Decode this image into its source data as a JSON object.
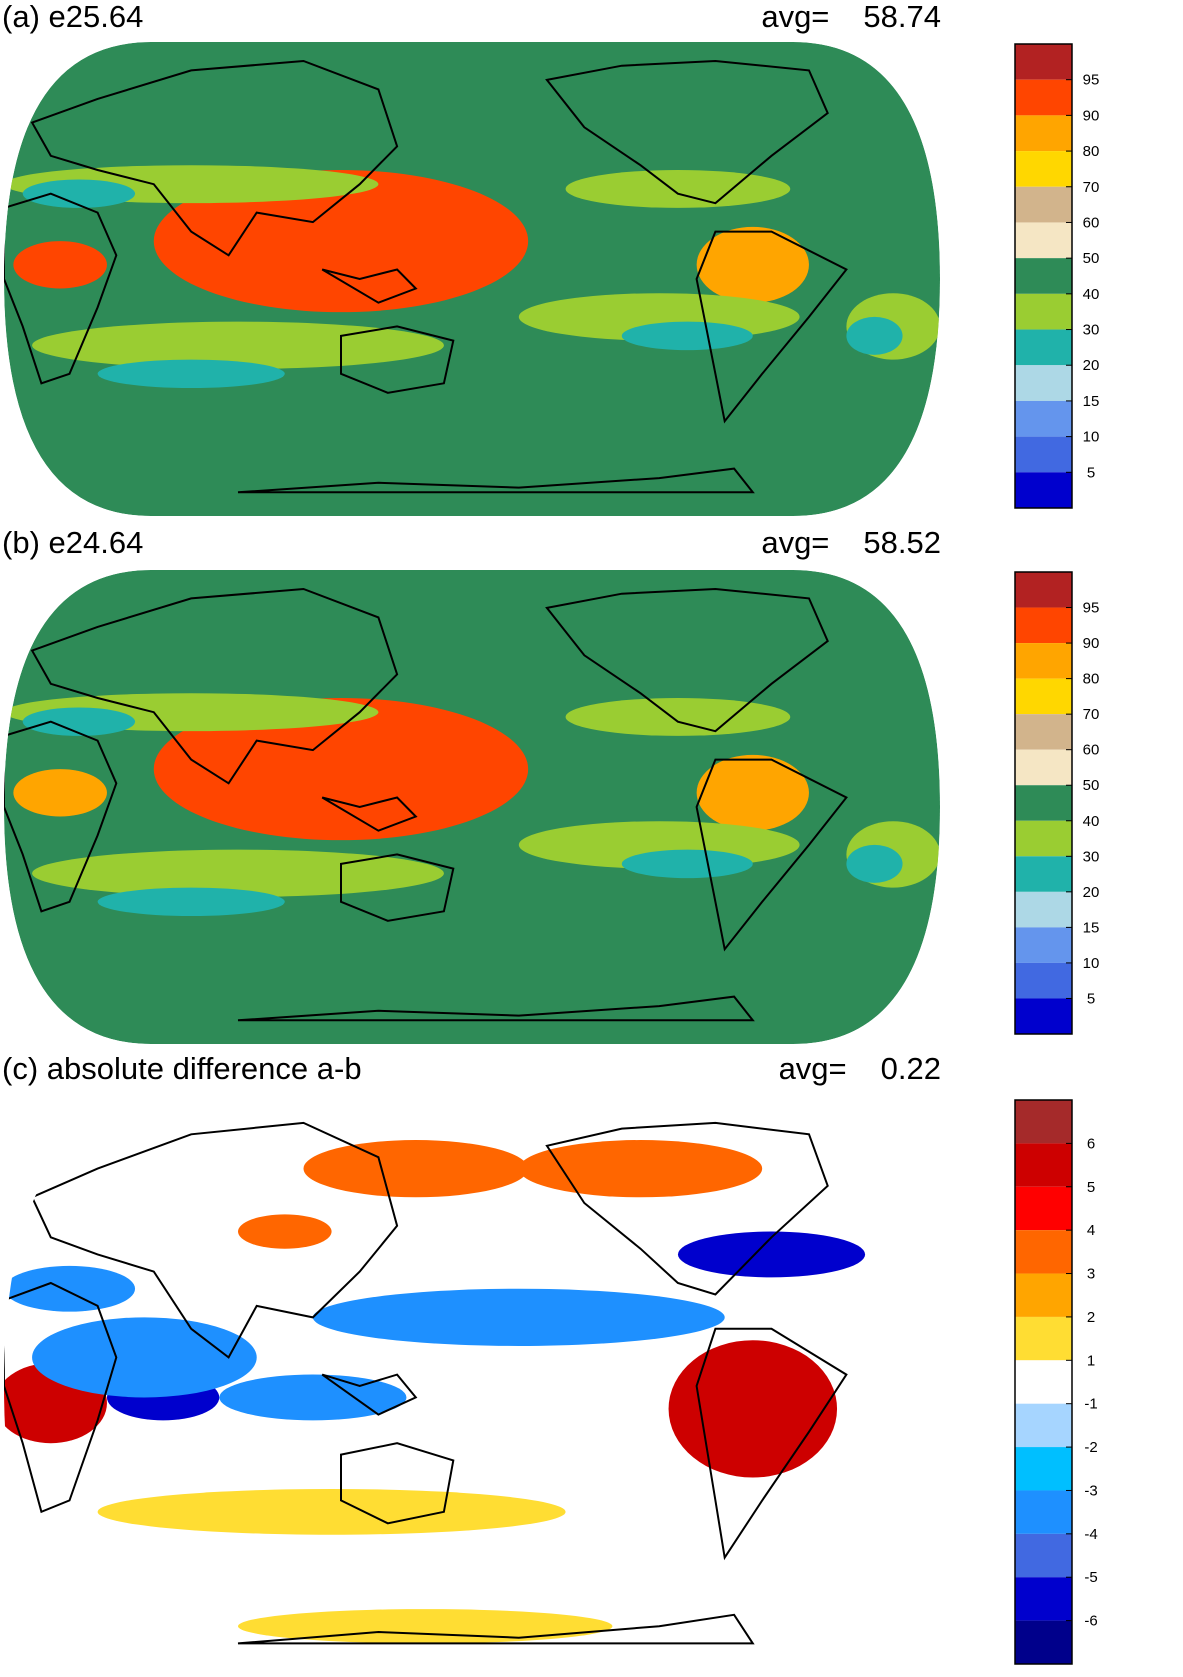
{
  "panels": [
    {
      "title": "(a) e25.64",
      "avg_label": "avg=",
      "avg_value": "58.74",
      "colorbar": {
        "labels": [
          "95",
          "90",
          "80",
          "70",
          "60",
          "50",
          "40",
          "30",
          "20",
          "15",
          "10",
          "5"
        ],
        "colors": [
          "#b22222",
          "#ff4500",
          "#ffa500",
          "#ffd700",
          "#d2b48c",
          "#f5e6c4",
          "#2e8b57",
          "#9acd32",
          "#20b2aa",
          "#add8e6",
          "#6495ed",
          "#4169e1",
          "#0000cd"
        ]
      },
      "fields": [
        {
          "name": "warm-pool-maximum",
          "color": "#b22222"
        },
        {
          "name": "warm-pool-orange",
          "color": "#ff4500"
        },
        {
          "name": "amazon-maximum",
          "color": "#ffa500"
        },
        {
          "name": "africa-maximum",
          "color": "#ff4500"
        },
        {
          "name": "subtropical-green-bands",
          "color": "#9acd32"
        },
        {
          "name": "subtropical-teal-cores",
          "color": "#20b2aa"
        }
      ]
    },
    {
      "title": "(b) e24.64",
      "avg_label": "avg=",
      "avg_value": "58.52",
      "colorbar": {
        "labels": [
          "95",
          "90",
          "80",
          "70",
          "60",
          "50",
          "40",
          "30",
          "20",
          "15",
          "10",
          "5"
        ],
        "colors": [
          "#b22222",
          "#ff4500",
          "#ffa500",
          "#ffd700",
          "#d2b48c",
          "#f5e6c4",
          "#2e8b57",
          "#9acd32",
          "#20b2aa",
          "#add8e6",
          "#6495ed",
          "#4169e1",
          "#0000cd"
        ]
      },
      "fields": [
        {
          "name": "warm-pool-maximum",
          "color": "#b22222"
        },
        {
          "name": "warm-pool-orange",
          "color": "#ff4500"
        },
        {
          "name": "amazon-maximum",
          "color": "#ffa500"
        },
        {
          "name": "africa-maximum",
          "color": "#ffa500"
        },
        {
          "name": "subtropical-green-bands",
          "color": "#9acd32"
        },
        {
          "name": "subtropical-teal-cores",
          "color": "#20b2aa"
        }
      ]
    },
    {
      "title": "(c) absolute difference a-b",
      "avg_label": "avg=",
      "avg_value": "0.22",
      "colorbar": {
        "labels": [
          "6",
          "5",
          "4",
          "3",
          "2",
          "1",
          "-1",
          "-2",
          "-3",
          "-4",
          "-5",
          "-6"
        ],
        "colors": [
          "#a52a2a",
          "#cd0000",
          "#ff0000",
          "#ff6600",
          "#ffa500",
          "#ffdd33",
          "#ffffff",
          "#a6d5ff",
          "#00bfff",
          "#1e90ff",
          "#4169e1",
          "#0000cd",
          "#00008b"
        ]
      },
      "fields": [
        {
          "name": "south-america-positive",
          "color": "#cd0000"
        },
        {
          "name": "africa-positive",
          "color": "#cd0000"
        },
        {
          "name": "north-pacific-positive",
          "color": "#ff6600"
        },
        {
          "name": "north-america-negative",
          "color": "#0000cd"
        },
        {
          "name": "tropical-negative",
          "color": "#1e90ff"
        },
        {
          "name": "southern-positive",
          "color": "#ffdd33"
        }
      ]
    }
  ]
}
